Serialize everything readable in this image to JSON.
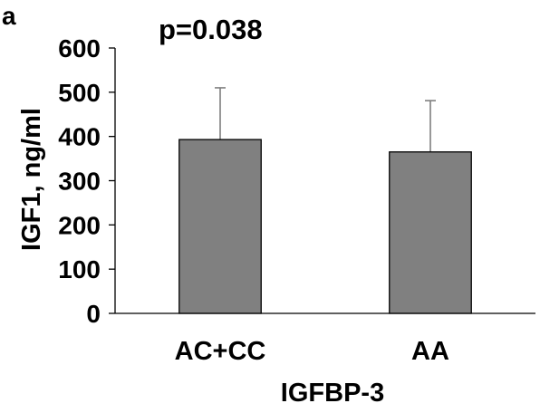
{
  "panel_label": "a",
  "chart_data": {
    "type": "bar",
    "annotation": "p=0.038",
    "categories": [
      "AC+CC",
      "AA"
    ],
    "values": [
      393,
      365
    ],
    "error_upper": [
      510,
      481
    ],
    "xlabel": "IGFBP-3",
    "ylabel": "IGF1, ng/ml",
    "ylim": [
      0,
      600
    ],
    "yticks": [
      0,
      100,
      200,
      300,
      400,
      500,
      600
    ],
    "grid": false,
    "bar_color": "#808080",
    "bar_edge_color": "#000000",
    "error_bar_color": "#7f7f7f"
  }
}
